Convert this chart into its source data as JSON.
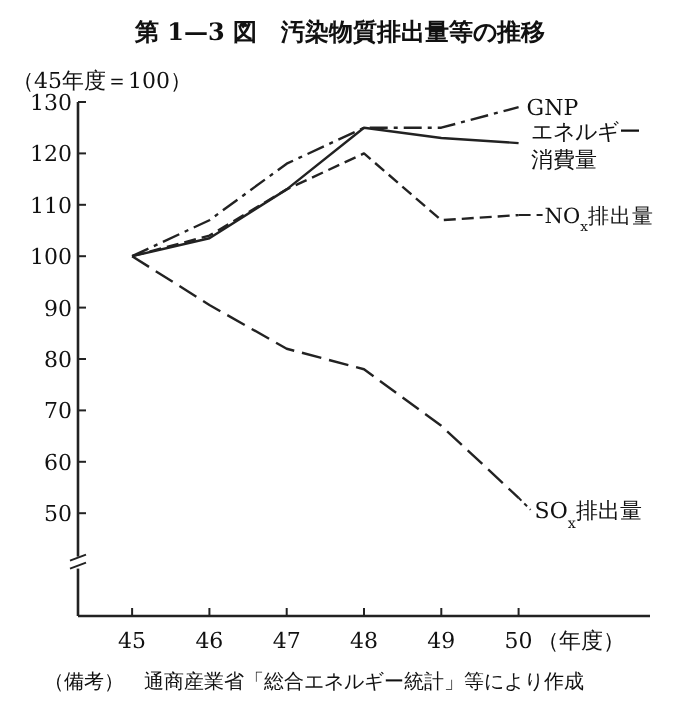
{
  "chart_data": {
    "type": "line",
    "title": "第 1—3 図　汚染物質排出量等の推移",
    "ylabel": "（45年度＝100）",
    "xlabel": "（年度）",
    "x": [
      45,
      46,
      47,
      48,
      49,
      50
    ],
    "xlim": [
      44.3,
      51.7
    ],
    "xticks": [
      45,
      46,
      47,
      48,
      49,
      50
    ],
    "ylim": [
      30,
      130
    ],
    "yticks": [
      50,
      60,
      70,
      80,
      90,
      100,
      110,
      120,
      130
    ],
    "grid": false,
    "legend": "right",
    "marker": "none",
    "series": [
      {
        "name": "GNP",
        "color": "#222222",
        "line_style": "dashdot",
        "values": [
          100,
          107,
          118,
          125,
          125,
          129
        ]
      },
      {
        "name": "エネルギー消費量",
        "color": "#222222",
        "line_style": "solid",
        "values": [
          100,
          103.5,
          113,
          125,
          123,
          122
        ]
      },
      {
        "name": "NO$_{x}$排出量",
        "color": "#222222",
        "line_style": "dashed",
        "values": [
          100,
          104,
          113,
          120,
          107,
          108
        ]
      },
      {
        "name": "SO$_{x}$排出量",
        "color": "#222222",
        "line_style": "longdash",
        "values": [
          100,
          90.5,
          82,
          78,
          67,
          53
        ]
      }
    ],
    "annotations": [
      "（備考）　通商産業省「総合エネルギー統計」等により作成"
    ]
  }
}
